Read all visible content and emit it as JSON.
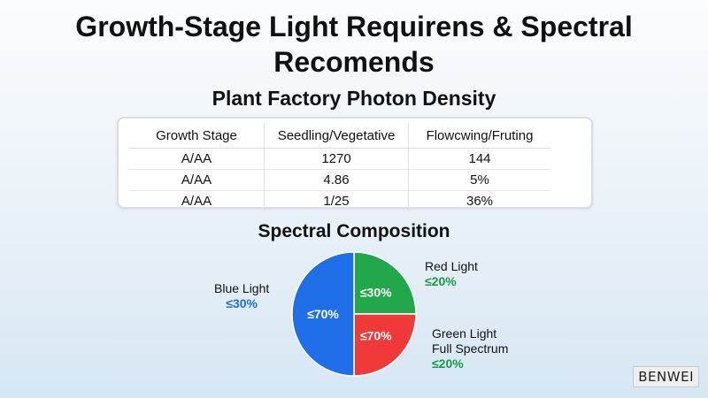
{
  "title": "Growth-Stage Light Requirens & Spectral Recomends",
  "table": {
    "title": "Plant Factory Photon Density",
    "headers": [
      "Growth Stage",
      "Seedling/Vegetative",
      "Flowcwing/Fruting"
    ],
    "rows": [
      [
        "A/AA",
        "1270",
        "144"
      ],
      [
        "A/AA",
        "4.86",
        "5%"
      ],
      [
        "A/AA",
        "1/25",
        "36%"
      ]
    ]
  },
  "chart_data": {
    "type": "pie",
    "title": "Spectral Composition",
    "slices": [
      {
        "name": "Blue",
        "value": 50,
        "label": "≤70%",
        "color": "#1f6fe8"
      },
      {
        "name": "Red",
        "value": 25,
        "label": "≤70%",
        "color": "#f03a3a"
      },
      {
        "name": "Green",
        "value": 25,
        "label": "≤30%",
        "color": "#22a84a"
      }
    ],
    "annotations": {
      "blue": {
        "label": "Blue Light",
        "value": "≤30%"
      },
      "red": {
        "label": "Red Light",
        "value": "≤20%"
      },
      "green": {
        "label_line1": "Green Light",
        "label_line2": "Full Spectrum",
        "value": "≤20%"
      }
    }
  },
  "watermark": "BENWEI"
}
